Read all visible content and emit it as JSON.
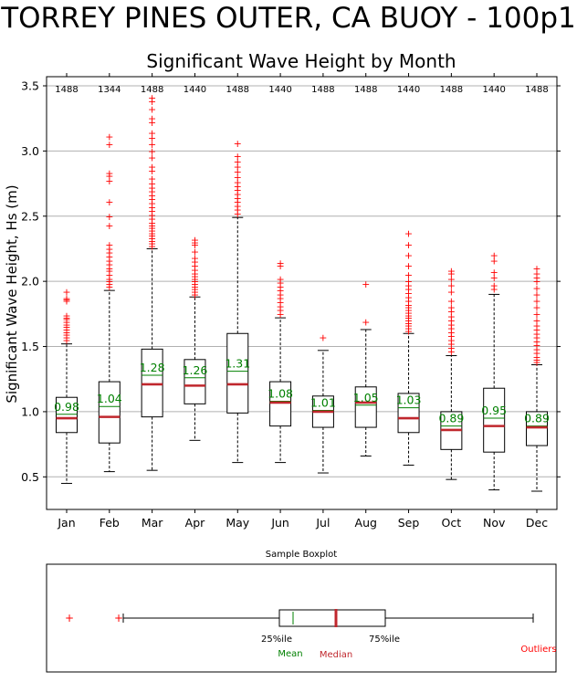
{
  "page": {
    "title": "TORREY PINES OUTER, CA BUOY - 100p1"
  },
  "chart_data": [
    {
      "type": "boxplot",
      "title": "Significant Wave Height by Month",
      "xlabel": "",
      "ylabel": "Significant Wave Height, Hs (m)",
      "ylim": [
        0.25,
        3.57
      ],
      "yticks": [
        "0.5",
        "1.0",
        "1.5",
        "2.0",
        "2.5",
        "3.0",
        "3.5"
      ],
      "grid": "horizontal",
      "categories": [
        "Jan",
        "Feb",
        "Mar",
        "Apr",
        "May",
        "Jun",
        "Jul",
        "Aug",
        "Sep",
        "Oct",
        "Nov",
        "Dec"
      ],
      "counts": [
        "1488",
        "1344",
        "1488",
        "1440",
        "1488",
        "1440",
        "1488",
        "1488",
        "1440",
        "1488",
        "1440",
        "1488"
      ],
      "mean_labels": [
        "0.98",
        "1.04",
        "1.28",
        "1.26",
        "1.31",
        "1.08",
        "1.01",
        "1.05",
        "1.03",
        "0.89",
        "0.95",
        "0.89"
      ],
      "boxes": [
        {
          "whislo": 0.45,
          "q1": 0.84,
          "med": 0.95,
          "mean": 0.98,
          "q3": 1.11,
          "whishi": 1.52,
          "fliers": [
            1.55,
            1.57,
            1.59,
            1.61,
            1.63,
            1.65,
            1.67,
            1.69,
            1.71,
            1.72,
            1.74,
            1.85,
            1.86,
            1.87,
            1.92
          ]
        },
        {
          "whislo": 0.54,
          "q1": 0.76,
          "med": 0.96,
          "mean": 1.04,
          "q3": 1.23,
          "whishi": 1.93,
          "fliers": [
            1.96,
            1.98,
            2.0,
            2.02,
            2.05,
            2.08,
            2.1,
            2.13,
            2.16,
            2.19,
            2.22,
            2.25,
            2.28,
            2.43,
            2.5,
            2.61,
            2.77,
            2.81,
            2.83,
            3.05,
            3.11
          ]
        },
        {
          "whislo": 0.55,
          "q1": 0.96,
          "med": 1.21,
          "mean": 1.28,
          "q3": 1.48,
          "whishi": 2.25,
          "fliers": [
            2.27,
            2.29,
            2.31,
            2.33,
            2.35,
            2.37,
            2.39,
            2.41,
            2.43,
            2.45,
            2.48,
            2.51,
            2.54,
            2.57,
            2.6,
            2.63,
            2.66,
            2.69,
            2.72,
            2.75,
            2.79,
            2.85,
            2.88,
            2.95,
            3.0,
            3.05,
            3.1,
            3.14,
            3.22,
            3.25,
            3.32,
            3.38,
            3.41
          ]
        },
        {
          "whislo": 0.78,
          "q1": 1.06,
          "med": 1.2,
          "mean": 1.26,
          "q3": 1.4,
          "whishi": 1.88,
          "fliers": [
            1.9,
            1.92,
            1.94,
            1.96,
            1.98,
            2.0,
            2.02,
            2.04,
            2.06,
            2.09,
            2.12,
            2.15,
            2.18,
            2.23,
            2.28,
            2.3,
            2.32
          ]
        },
        {
          "whislo": 0.61,
          "q1": 0.99,
          "med": 1.21,
          "mean": 1.31,
          "q3": 1.6,
          "whishi": 2.49,
          "fliers": [
            2.52,
            2.55,
            2.58,
            2.61,
            2.64,
            2.67,
            2.7,
            2.73,
            2.76,
            2.8,
            2.84,
            2.88,
            2.92,
            2.96,
            3.06
          ]
        },
        {
          "whislo": 0.61,
          "q1": 0.89,
          "med": 1.07,
          "mean": 1.08,
          "q3": 1.23,
          "whishi": 1.72,
          "fliers": [
            1.75,
            1.78,
            1.81,
            1.84,
            1.87,
            1.9,
            1.93,
            1.96,
            1.99,
            2.02,
            2.12,
            2.14
          ]
        },
        {
          "whislo": 0.53,
          "q1": 0.88,
          "med": 1.0,
          "mean": 1.01,
          "q3": 1.12,
          "whishi": 1.47,
          "fliers": [
            1.57
          ]
        },
        {
          "whislo": 0.66,
          "q1": 0.88,
          "med": 1.07,
          "mean": 1.05,
          "q3": 1.19,
          "whishi": 1.63,
          "fliers": [
            1.69,
            1.98
          ]
        },
        {
          "whislo": 0.59,
          "q1": 0.84,
          "med": 0.95,
          "mean": 1.03,
          "q3": 1.14,
          "whishi": 1.6,
          "fliers": [
            1.62,
            1.64,
            1.66,
            1.68,
            1.7,
            1.72,
            1.74,
            1.76,
            1.78,
            1.8,
            1.82,
            1.85,
            1.88,
            1.91,
            1.94,
            1.97,
            2.0,
            2.05,
            2.12,
            2.2,
            2.28,
            2.37
          ]
        },
        {
          "whislo": 0.48,
          "q1": 0.71,
          "med": 0.86,
          "mean": 0.89,
          "q3": 1.0,
          "whishi": 1.43,
          "fliers": [
            1.46,
            1.49,
            1.52,
            1.55,
            1.58,
            1.61,
            1.64,
            1.67,
            1.7,
            1.73,
            1.77,
            1.8,
            1.85,
            1.92,
            1.97,
            2.02,
            2.06,
            2.08
          ]
        },
        {
          "whislo": 0.4,
          "q1": 0.69,
          "med": 0.89,
          "mean": 0.95,
          "q3": 1.18,
          "whishi": 1.9,
          "fliers": [
            1.94,
            1.97,
            2.03,
            2.07,
            2.16,
            2.2
          ]
        },
        {
          "whislo": 0.39,
          "q1": 0.74,
          "med": 0.88,
          "mean": 0.89,
          "q3": 1.0,
          "whishi": 1.36,
          "fliers": [
            1.38,
            1.4,
            1.42,
            1.45,
            1.48,
            1.51,
            1.54,
            1.57,
            1.6,
            1.63,
            1.66,
            1.7,
            1.75,
            1.8,
            1.85,
            1.9,
            1.95,
            2.0,
            2.03,
            2.06,
            2.1
          ]
        }
      ]
    },
    {
      "type": "boxplot",
      "title": "Sample Boxplot",
      "labels": {
        "q1": "25%ile",
        "q3": "75%ile",
        "mean": "Mean",
        "median": "Median",
        "outliers": "Outliers"
      },
      "colors": {
        "mean": "#008000",
        "median": "#c0272d",
        "outliers": "#ff0000",
        "box": "#000000",
        "grid": "#b0b0b0"
      }
    }
  ]
}
